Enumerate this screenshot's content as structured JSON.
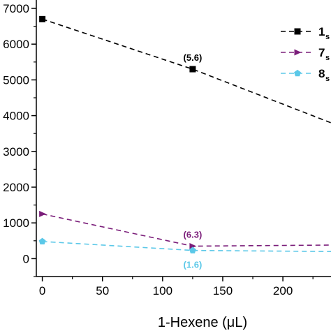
{
  "chart_data": {
    "type": "line",
    "xlabel": "1-Hexene (μL)",
    "xlim": [
      -5,
      240
    ],
    "ylim": [
      -500,
      7000
    ],
    "x_ticks": [
      0,
      50,
      100,
      150,
      200
    ],
    "y_ticks": [
      {
        "value": 7000,
        "label": "7000"
      },
      {
        "value": 6000,
        "label": "6000"
      },
      {
        "value": 5000,
        "label": "5000"
      },
      {
        "value": 4000,
        "label": "4000"
      },
      {
        "value": 3000,
        "label": "3000"
      },
      {
        "value": 2000,
        "label": "2000"
      },
      {
        "value": 1000,
        "label": "1000"
      },
      {
        "value": 0,
        "label": "0"
      }
    ],
    "series": [
      {
        "name": "1",
        "subscript": "s",
        "color": "#000000",
        "marker": "square",
        "x": [
          0,
          125
        ],
        "y": [
          6700,
          5300
        ],
        "trend_end": [
          240,
          3800
        ]
      },
      {
        "name": "7",
        "subscript": "s",
        "color": "#7b1e7a",
        "marker": "triangle-right",
        "x": [
          0,
          125
        ],
        "y": [
          1250,
          350
        ],
        "trend_end": [
          240,
          380
        ]
      },
      {
        "name": "8",
        "subscript": "s",
        "color": "#5bc8e8",
        "marker": "pentagon",
        "x": [
          0,
          125
        ],
        "y": [
          480,
          230
        ],
        "trend_end": [
          240,
          200
        ]
      }
    ],
    "annotations": [
      {
        "text": "(5.6)",
        "x": 125,
        "y": 5300,
        "series": 0,
        "position": "above"
      },
      {
        "text": "(6.3)",
        "x": 125,
        "y": 350,
        "series": 1,
        "position": "above"
      },
      {
        "text": "(1.6)",
        "x": 125,
        "y": 230,
        "series": 2,
        "position": "below"
      }
    ],
    "legend_position": "top-right",
    "grid": false
  }
}
